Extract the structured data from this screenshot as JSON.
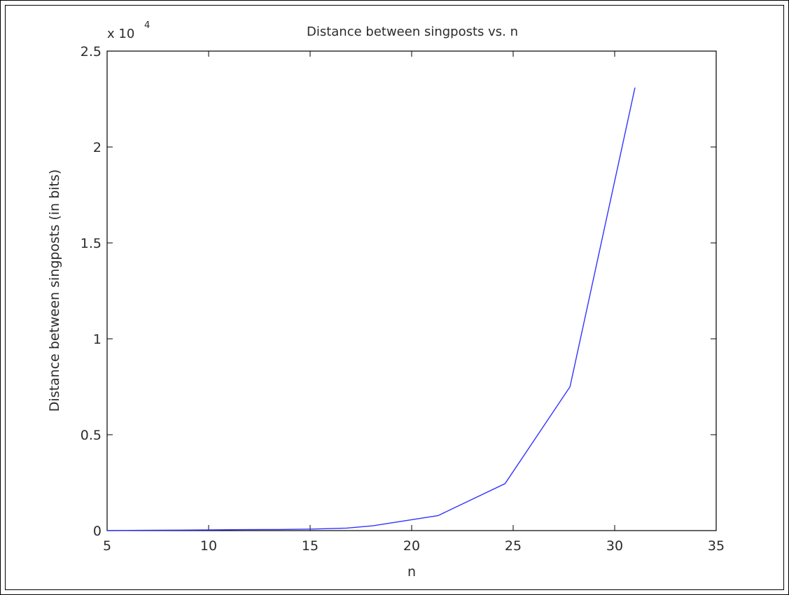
{
  "chart_data": {
    "type": "line",
    "title": "Distance between singposts vs. n",
    "xlabel": "n",
    "ylabel": "Distance between singposts (in bits)",
    "y_exponent_label": "x 10",
    "y_exponent_power": "4",
    "xlim": [
      5,
      35
    ],
    "ylim": [
      0,
      25000
    ],
    "grid": false,
    "x_ticks": [
      5,
      10,
      15,
      20,
      25,
      30,
      35
    ],
    "x_tick_labels": [
      "5",
      "10",
      "15",
      "20",
      "25",
      "30",
      "35"
    ],
    "y_ticks": [
      0,
      5000,
      10000,
      15000,
      20000,
      25000
    ],
    "y_tick_labels": [
      "0",
      "0.5",
      "1",
      "1.5",
      "2",
      "2.5"
    ],
    "series": [
      {
        "color": "#3333ff",
        "x": [
          5,
          6.7,
          8.4,
          10.1,
          11.7,
          13.4,
          15.1,
          16.8,
          18.1,
          21.3,
          24.6,
          27.8,
          31
        ],
        "y": [
          0,
          15,
          25,
          35,
          50,
          60,
          80,
          130,
          250,
          780,
          2450,
          7500,
          23100
        ]
      }
    ]
  }
}
